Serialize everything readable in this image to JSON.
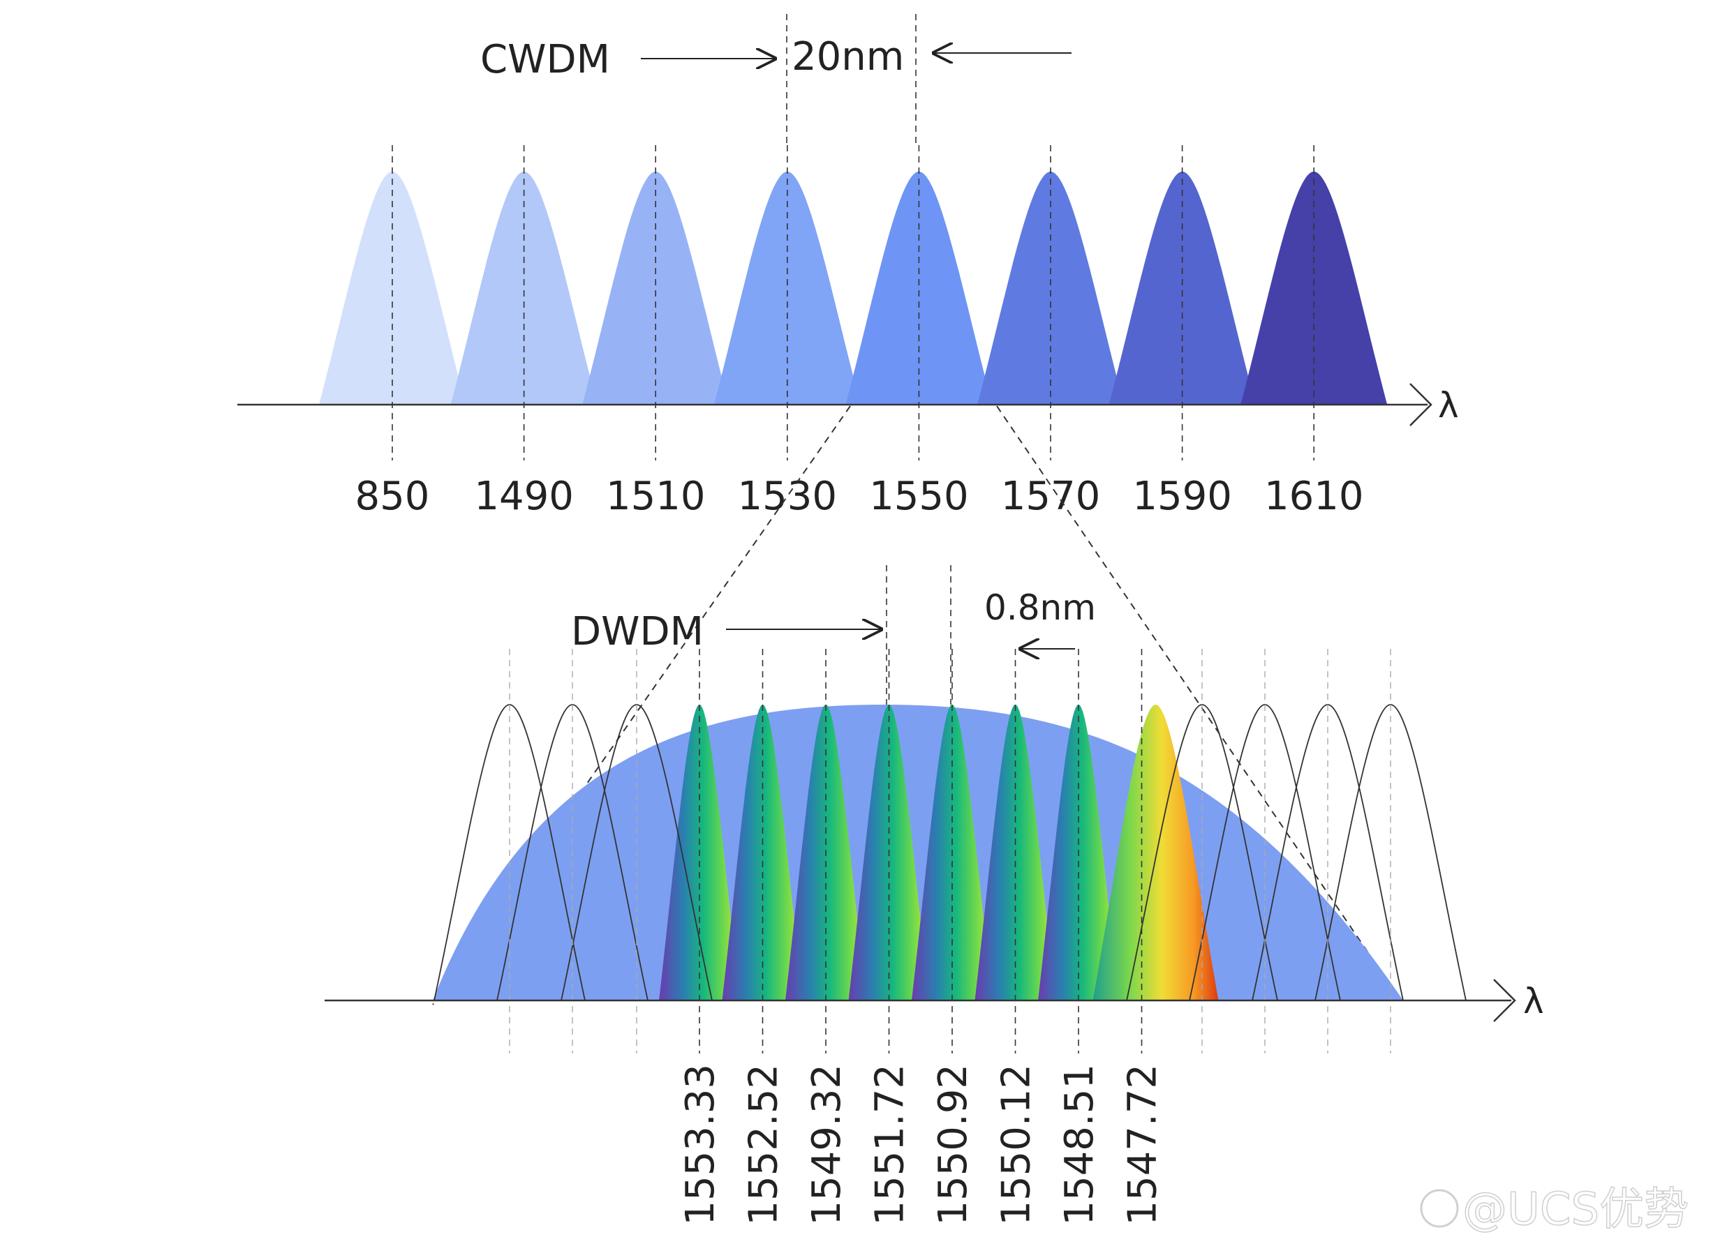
{
  "cwdm": {
    "label": "CWDM",
    "spacing_label": "20nm",
    "axis_symbol": "λ",
    "channels": [
      {
        "label": "850",
        "color": "#d3e0fb"
      },
      {
        "label": "1490",
        "color": "#b1c8f8"
      },
      {
        "label": "1510",
        "color": "#97b3f6"
      },
      {
        "label": "1530",
        "color": "#80a4f6"
      },
      {
        "label": "1550",
        "color": "#6e95f5"
      },
      {
        "label": "1570",
        "color": "#5f7be2"
      },
      {
        "label": "1590",
        "color": "#5565cf"
      },
      {
        "label": "1610",
        "color": "#4541a9"
      }
    ]
  },
  "dwdm": {
    "label": "DWDM",
    "spacing_label": "0.8nm",
    "axis_symbol": "λ",
    "envelope_color": "#7d9ff2",
    "channels": [
      "1553.33",
      "1552.52",
      "1549.32",
      "1551.72",
      "1550.92",
      "1550.12",
      "1548.51",
      "1547.72"
    ]
  },
  "watermark": "@UCS优势"
}
